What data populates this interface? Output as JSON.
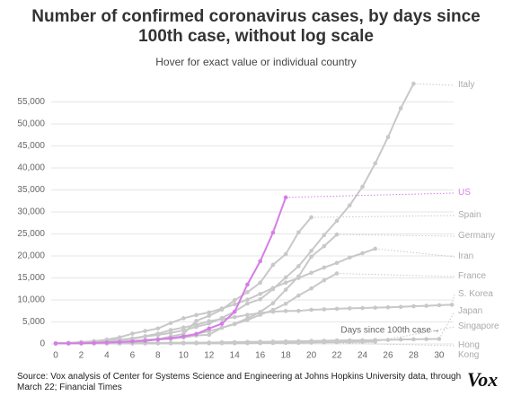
{
  "chart_data": {
    "type": "line",
    "title": "Number of confirmed coronavirus cases, by days since 100th case, without log scale",
    "subtitle": "Hover for exact value or individual country",
    "x_label": "Days since 100th case→",
    "source": "Source: Vox analysis of Center for Systems Science and Engineering at Johns Hopkins University data, through March 22; Financial Times",
    "logo": "Vox",
    "x": [
      0,
      1,
      2,
      3,
      4,
      5,
      6,
      7,
      8,
      9,
      10,
      11,
      12,
      13,
      14,
      15,
      16,
      17,
      18,
      19,
      20,
      21,
      22,
      23,
      24,
      25,
      26,
      27,
      28,
      29,
      30,
      31
    ],
    "xlim": [
      0,
      31.5
    ],
    "xticks": [
      0,
      2,
      4,
      6,
      8,
      10,
      12,
      14,
      16,
      18,
      20,
      22,
      24,
      26,
      28,
      30
    ],
    "ylim": [
      0,
      60000
    ],
    "yticks": [
      0,
      {
        "value": 5000,
        "label": "5,000"
      },
      {
        "value": 10000,
        "label": "10,000"
      },
      {
        "value": 15000,
        "label": "15,000"
      },
      {
        "value": 20000,
        "label": "20,000"
      },
      {
        "value": 25000,
        "label": "25,000"
      },
      {
        "value": 30000,
        "label": "30,000"
      },
      {
        "value": 35000,
        "label": "35,000"
      },
      {
        "value": 40000,
        "label": "40,000"
      },
      {
        "value": 45000,
        "label": "45,000"
      },
      {
        "value": 50000,
        "label": "50,000"
      },
      {
        "value": 55000,
        "label": "55,000"
      }
    ],
    "grid": true,
    "series": [
      {
        "name": "Italy",
        "color": "#c8c8c8",
        "values": [
          155,
          229,
          322,
          453,
          655,
          888,
          1128,
          1694,
          2036,
          2502,
          3089,
          3858,
          4636,
          5883,
          7375,
          9172,
          10149,
          12462,
          15113,
          17660,
          21157,
          24747,
          27980,
          31506,
          35713,
          41035,
          47021,
          53578,
          59138,
          null,
          null,
          null
        ]
      },
      {
        "name": "Spain",
        "color": "#c8c8c8",
        "values": [
          100,
          120,
          165,
          222,
          259,
          400,
          500,
          673,
          1073,
          1695,
          2277,
          5232,
          6391,
          7798,
          9942,
          11748,
          13910,
          17963,
          20410,
          25374,
          28768,
          null,
          null,
          null,
          null,
          null,
          null,
          null,
          null,
          null,
          null,
          null
        ]
      },
      {
        "name": "Germany",
        "color": "#c8c8c8",
        "values": [
          117,
          130,
          159,
          196,
          262,
          482,
          670,
          799,
          1040,
          1176,
          1457,
          1908,
          2078,
          3675,
          4585,
          5795,
          7272,
          9257,
          12327,
          15320,
          19848,
          22213,
          24873,
          null,
          null,
          null,
          null,
          null,
          null,
          null,
          null,
          null
        ]
      },
      {
        "name": "Iran",
        "color": "#c8c8c8",
        "values": [
          139,
          245,
          388,
          593,
          978,
          1501,
          2336,
          2922,
          3513,
          4747,
          5823,
          6566,
          7161,
          8042,
          9000,
          10075,
          11364,
          12729,
          13938,
          14991,
          16169,
          17361,
          18407,
          19644,
          20610,
          21638,
          null,
          null,
          null,
          null,
          null,
          null
        ]
      },
      {
        "name": "France",
        "color": "#c8c8c8",
        "values": [
          100,
          130,
          191,
          204,
          285,
          377,
          653,
          949,
          1126,
          1209,
          1784,
          2281,
          2876,
          3661,
          4499,
          5423,
          6633,
          7730,
          9134,
          10995,
          12612,
          14459,
          16018,
          null,
          null,
          null,
          null,
          null,
          null,
          null,
          null,
          null
        ]
      },
      {
        "name": "S. Korea",
        "color": "#c8c8c8",
        "values": [
          104,
          204,
          433,
          602,
          833,
          977,
          1261,
          1766,
          2337,
          3150,
          3736,
          4335,
          5186,
          5621,
          6088,
          6593,
          7041,
          7314,
          7478,
          7513,
          7755,
          7869,
          7979,
          8086,
          8162,
          8236,
          8320,
          8413,
          8565,
          8652,
          8799,
          8897
        ]
      },
      {
        "name": "Japan",
        "color": "#c8c8c8",
        "values": [
          105,
          132,
          144,
          157,
          164,
          186,
          210,
          230,
          239,
          254,
          268,
          284,
          317,
          349,
          408,
          455,
          488,
          514,
          568,
          620,
          675,
          716,
          780,
          814,
          829,
          873,
          914,
          1004,
          1055,
          1086,
          1128,
          null
        ]
      },
      {
        "name": "Singapore",
        "color": "#c8c8c8",
        "values": [
          102,
          103,
          108,
          110,
          110,
          112,
          112,
          117,
          130,
          138,
          150,
          150,
          160,
          178,
          178,
          200,
          212,
          226,
          243,
          266,
          313,
          345,
          385,
          432,
          455,
          509,
          null,
          null,
          null,
          null,
          null,
          null
        ]
      },
      {
        "name": "Hong Kong",
        "color": "#c8c8c8",
        "values": [
          100,
          105,
          107,
          109,
          114,
          115,
          120,
          126,
          129,
          134,
          137,
          141,
          149,
          157,
          162,
          167,
          192,
          208,
          256,
          273,
          317,
          null,
          null,
          null,
          null,
          null,
          null,
          null,
          null,
          null,
          null,
          null
        ]
      },
      {
        "name": "US",
        "color": "#d57de6",
        "values": [
          100,
          124,
          158,
          221,
          319,
          435,
          541,
          704,
          994,
          1301,
          1697,
          2247,
          3500,
          4600,
          7300,
          13500,
          18800,
          25300,
          33300,
          null,
          null,
          null,
          null,
          null,
          null,
          null,
          null,
          null,
          null,
          null,
          null,
          null
        ]
      }
    ]
  }
}
